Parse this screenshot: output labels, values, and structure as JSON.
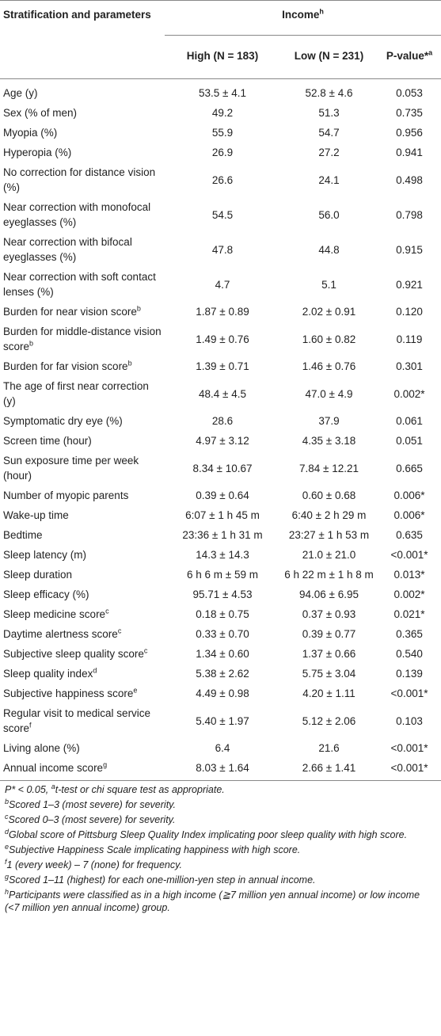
{
  "header": {
    "stratification": "Stratification and parameters",
    "income": "Income",
    "income_mark": "h",
    "high": "High (N = 183)",
    "low": "Low (N = 231)",
    "p_value": "P-value*",
    "p_value_mark": "a"
  },
  "table": {
    "rows": [
      {
        "label": "Age (y)",
        "high": "53.5 ± 4.1",
        "low": "52.8 ± 4.6",
        "p": "0.053"
      },
      {
        "label": "Sex (% of men)",
        "high": "49.2",
        "low": "51.3",
        "p": "0.735"
      },
      {
        "label": "Myopia (%)",
        "high": "55.9",
        "low": "54.7",
        "p": "0.956"
      },
      {
        "label": "Hyperopia (%)",
        "high": "26.9",
        "low": "27.2",
        "p": "0.941"
      },
      {
        "label": "No correction for distance vision (%)",
        "high": "26.6",
        "low": "24.1",
        "p": "0.498"
      },
      {
        "label": "Near correction with monofocal eyeglasses (%)",
        "high": "54.5",
        "low": "56.0",
        "p": "0.798"
      },
      {
        "label": "Near correction with bifocal eyeglasses (%)",
        "high": "47.8",
        "low": "44.8",
        "p": "0.915"
      },
      {
        "label": "Near correction with soft contact lenses (%)",
        "high": "4.7",
        "low": "5.1",
        "p": "0.921"
      },
      {
        "label": "Burden for near vision score",
        "sup": "b",
        "high": "1.87 ± 0.89",
        "low": "2.02 ± 0.91",
        "p": "0.120"
      },
      {
        "label": "Burden for middle-distance vision score",
        "sup": "b",
        "high": "1.49 ± 0.76",
        "low": "1.60 ± 0.82",
        "p": "0.119"
      },
      {
        "label": "Burden for far vision score",
        "sup": "b",
        "high": "1.39 ± 0.71",
        "low": "1.46 ± 0.76",
        "p": "0.301"
      },
      {
        "label": "The age of first near correction (y)",
        "high": "48.4 ± 4.5",
        "low": "47.0 ± 4.9",
        "p": "0.002*"
      },
      {
        "label": "Symptomatic dry eye (%)",
        "high": "28.6",
        "low": "37.9",
        "p": "0.061"
      },
      {
        "label": "Screen time (hour)",
        "high": "4.97 ± 3.12",
        "low": "4.35 ± 3.18",
        "p": "0.051"
      },
      {
        "label": "Sun exposure time per week (hour)",
        "high": "8.34 ± 10.67",
        "low": "7.84 ± 12.21",
        "p": "0.665"
      },
      {
        "label": "Number of myopic parents",
        "high": "0.39 ± 0.64",
        "low": "0.60 ± 0.68",
        "p": "0.006*"
      },
      {
        "label": "Wake-up time",
        "high": "6:07 ± 1 h 45 m",
        "low": "6:40 ± 2 h 29 m",
        "p": "0.006*"
      },
      {
        "label": "Bedtime",
        "high": "23:36 ± 1 h 31 m",
        "low": "23:27 ± 1 h 53 m",
        "p": "0.635"
      },
      {
        "label": "Sleep latency (m)",
        "high": "14.3 ± 14.3",
        "low": "21.0 ± 21.0",
        "p": "<0.001*"
      },
      {
        "label": "Sleep duration",
        "high": "6 h 6 m ± 59 m",
        "low": "6 h 22 m ± 1 h 8 m",
        "p": "0.013*"
      },
      {
        "label": "Sleep efficacy (%)",
        "high": "95.71 ± 4.53",
        "low": "94.06 ± 6.95",
        "p": "0.002*"
      },
      {
        "label": "Sleep medicine score",
        "sup": "c",
        "high": "0.18 ± 0.75",
        "low": "0.37 ± 0.93",
        "p": "0.021*"
      },
      {
        "label": "Daytime alertness score",
        "sup": "c",
        "high": "0.33 ± 0.70",
        "low": "0.39 ± 0.77",
        "p": "0.365"
      },
      {
        "label": "Subjective sleep quality score",
        "sup": "c",
        "high": "1.34 ± 0.60",
        "low": "1.37 ± 0.66",
        "p": "0.540"
      },
      {
        "label": "Sleep quality index",
        "sup": "d",
        "high": "5.38 ± 2.62",
        "low": "5.75 ± 3.04",
        "p": "0.139"
      },
      {
        "label": "Subjective happiness score",
        "sup": "e",
        "high": "4.49 ± 0.98",
        "low": "4.20 ± 1.11",
        "p": "<0.001*"
      },
      {
        "label": "Regular visit to medical service score",
        "sup": "f",
        "high": "5.40 ± 1.97",
        "low": "5.12 ± 2.06",
        "p": "0.103"
      },
      {
        "label": "Living alone (%)",
        "high": "6.4",
        "low": "21.6",
        "p": "<0.001*"
      },
      {
        "label": "Annual income score",
        "sup": "g",
        "high": "8.03 ± 1.64",
        "low": "2.66 ± 1.41",
        "p": "<0.001*"
      }
    ]
  },
  "footnotes": [
    {
      "prefix": "P* < 0.05, ",
      "mark": "a",
      "text": "t-test or chi square test as appropriate."
    },
    {
      "mark": "b",
      "text": "Scored 1–3 (most severe) for severity."
    },
    {
      "mark": "c",
      "text": "Scored 0–3 (most severe) for severity."
    },
    {
      "mark": "d",
      "text": "Global score of Pittsburg Sleep Quality Index implicating poor sleep quality with high score."
    },
    {
      "mark": "e",
      "text": "Subjective Happiness Scale implicating happiness with high score."
    },
    {
      "mark": "f",
      "text": "1 (every week) – 7 (none) for frequency."
    },
    {
      "mark": "g",
      "text": "Scored 1–11 (highest) for each one-million-yen step in annual income."
    },
    {
      "mark": "h",
      "text": "Participants were classified as in a high income (≧7 million yen annual income) or low income (<7 million yen annual income) group."
    }
  ]
}
